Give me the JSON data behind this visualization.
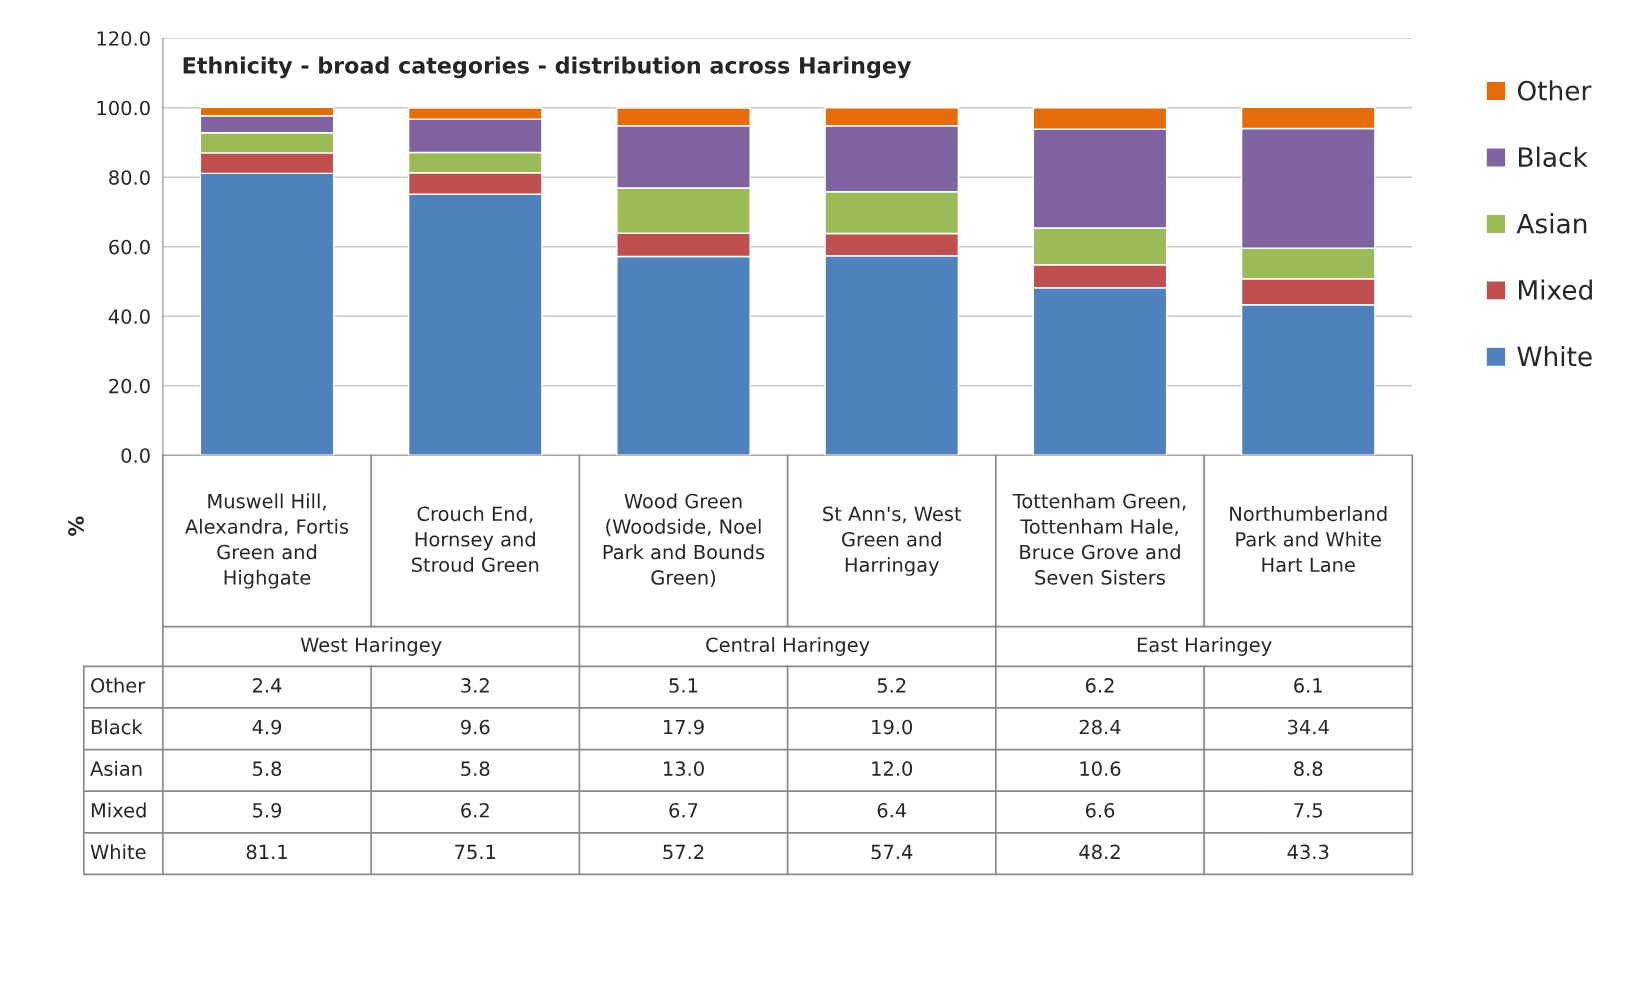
{
  "chart_data": {
    "type": "bar",
    "stacked": true,
    "title": "Ethnicity - broad categories - distribution across Haringey",
    "ylabel": "%",
    "categories": [
      "Muswell Hill, Alexandra, Fortis Green and Highgate",
      "Crouch End, Hornsey and Stroud Green",
      "Wood Green (Woodside, Noel Park and Bounds Green)",
      "St Ann's, West Green and Harringay",
      "Tottenham Green, Tottenham Hale, Bruce Grove and Seven Sisters",
      "Northumberland Park and White Hart Lane"
    ],
    "annotations": [
      "West Haringey",
      "Central Haringey",
      "East Haringey"
    ],
    "series": [
      {
        "name": "White",
        "color": "#4f81bd",
        "values": [
          81.1,
          75.1,
          57.2,
          57.4,
          48.2,
          43.3
        ],
        "value_labels": [
          "81.1",
          "75.1",
          "57.2",
          "57.4",
          "48.2",
          "43.3"
        ]
      },
      {
        "name": "Mixed",
        "color": "#c0504d",
        "values": [
          5.9,
          6.2,
          6.7,
          6.4,
          6.6,
          7.5
        ],
        "value_labels": [
          "5.9",
          "6.2",
          "6.7",
          "6.4",
          "6.6",
          "7.5"
        ]
      },
      {
        "name": "Asian",
        "color": "#9bbb59",
        "values": [
          5.8,
          5.8,
          13.0,
          12.0,
          10.6,
          8.8
        ],
        "value_labels": [
          "5.8",
          "5.8",
          "13.0",
          "12.0",
          "10.6",
          "8.8"
        ]
      },
      {
        "name": "Black",
        "color": "#8064a2",
        "values": [
          4.9,
          9.6,
          17.9,
          19.0,
          28.4,
          34.4
        ],
        "value_labels": [
          "4.9",
          "9.6",
          "17.9",
          "19.0",
          "28.4",
          "34.4"
        ]
      },
      {
        "name": "Other",
        "color": "#e46c0a",
        "values": [
          2.4,
          3.2,
          5.1,
          5.2,
          6.2,
          6.1
        ],
        "value_labels": [
          "2.4",
          "3.2",
          "5.1",
          "5.2",
          "6.2",
          "6.1"
        ]
      }
    ],
    "ylim": [
      0,
      120
    ],
    "yticks": [
      {
        "value": 0,
        "label": "0.0"
      },
      {
        "value": 20,
        "label": "20.0"
      },
      {
        "value": 40,
        "label": "40.0"
      },
      {
        "value": 60,
        "label": "60.0"
      },
      {
        "value": 80,
        "label": "80.0"
      },
      {
        "value": 100,
        "label": "100.0"
      },
      {
        "value": 120,
        "label": "120.0"
      }
    ],
    "grid": "y",
    "legend": "right"
  }
}
